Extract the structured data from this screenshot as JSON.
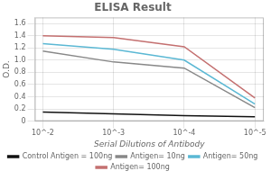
{
  "chart_data": {
    "type": "line",
    "title": "ELISA Result",
    "xlabel": "Serial Dilutions of Antibody",
    "ylabel": "O.D.",
    "x": [
      0.01,
      0.001,
      0.0001,
      1e-05
    ],
    "series": [
      {
        "name": "Control Antigen = 100ng",
        "color": "#111111",
        "values": [
          0.15,
          0.12,
          0.09,
          0.07
        ]
      },
      {
        "name": "Antigen= 10ng",
        "color": "#888888",
        "values": [
          1.15,
          0.97,
          0.87,
          0.22
        ]
      },
      {
        "name": "Antigen= 50ng",
        "color": "#5bb8d4",
        "values": [
          1.27,
          1.18,
          1.0,
          0.28
        ]
      },
      {
        "name": "Antigen= 100ng",
        "color": "#c47070",
        "values": [
          1.4,
          1.37,
          1.22,
          0.38
        ]
      }
    ],
    "log": "x",
    "xlim": [
      0.013,
      7.5e-06
    ],
    "xticks": [
      {
        "value": 0.01,
        "label": "10^-2"
      },
      {
        "value": 0.001,
        "label": "10^-3"
      },
      {
        "value": 0.0001,
        "label": "10^-4"
      },
      {
        "value": 1e-05,
        "label": "10^-5"
      }
    ],
    "ylim": [
      0,
      1.7
    ],
    "yticks": [
      0,
      0.2,
      0.4,
      0.6,
      0.8,
      {
        "value": 1.0,
        "label": "1.0"
      },
      1.2,
      1.4,
      1.6
    ],
    "grid": true,
    "legend": "bottom"
  }
}
